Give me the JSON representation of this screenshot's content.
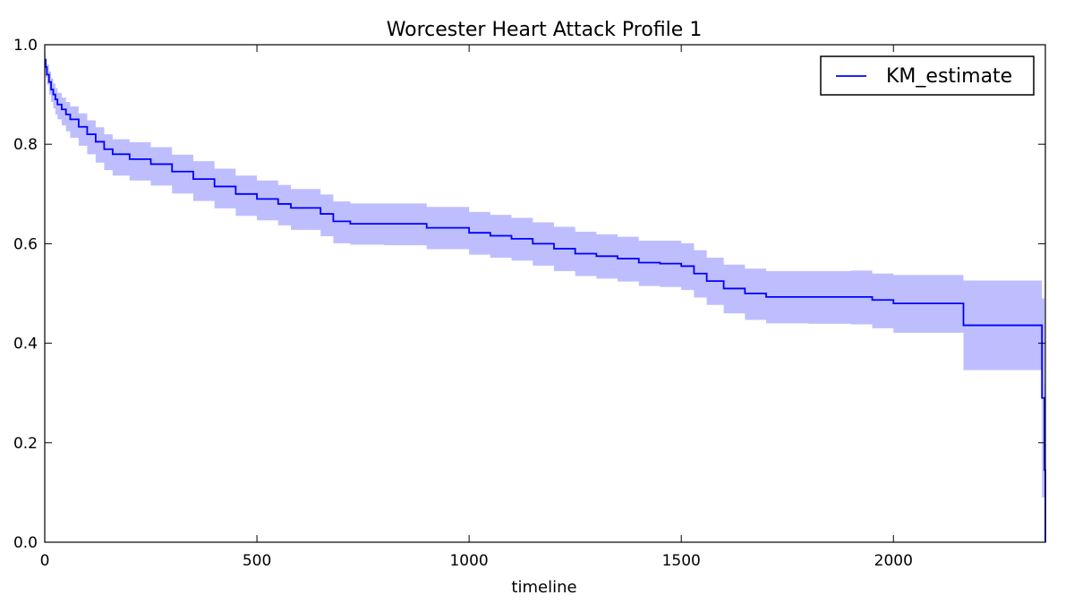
{
  "chart_data": {
    "type": "line",
    "title": "Worcester Heart Attack Profile 1",
    "xlabel": "timeline",
    "ylabel": "",
    "xlim": [
      0,
      2358
    ],
    "ylim": [
      0.0,
      1.0
    ],
    "x_ticks": [
      0,
      500,
      1000,
      1500,
      2000
    ],
    "y_ticks": [
      0.0,
      0.2,
      0.4,
      0.6,
      0.8,
      1.0
    ],
    "x_tick_labels": [
      "0",
      "500",
      "1000",
      "1500",
      "2000"
    ],
    "y_tick_labels": [
      "0.0",
      "0.2",
      "0.4",
      "0.6",
      "0.8",
      "1.0"
    ],
    "grid": false,
    "legend_position": "top-right",
    "colors": {
      "line": "#0000ff",
      "band": "#b3b3ff"
    },
    "series": [
      {
        "name": "KM_estimate",
        "step": "post",
        "x": [
          0,
          2,
          5,
          10,
          15,
          20,
          25,
          30,
          40,
          50,
          60,
          80,
          100,
          120,
          140,
          160,
          200,
          250,
          300,
          350,
          400,
          450,
          500,
          550,
          580,
          650,
          680,
          720,
          800,
          900,
          1000,
          1050,
          1100,
          1150,
          1200,
          1250,
          1300,
          1350,
          1400,
          1450,
          1500,
          1530,
          1560,
          1600,
          1650,
          1700,
          1800,
          1900,
          1950,
          2000,
          2100,
          2165,
          2250,
          2350,
          2356,
          2358
        ],
        "y": [
          0.97,
          0.955,
          0.94,
          0.925,
          0.91,
          0.9,
          0.89,
          0.88,
          0.87,
          0.86,
          0.85,
          0.835,
          0.82,
          0.805,
          0.79,
          0.78,
          0.77,
          0.76,
          0.745,
          0.73,
          0.715,
          0.7,
          0.69,
          0.68,
          0.672,
          0.66,
          0.645,
          0.64,
          0.64,
          0.632,
          0.622,
          0.616,
          0.61,
          0.6,
          0.59,
          0.58,
          0.575,
          0.57,
          0.562,
          0.56,
          0.555,
          0.54,
          0.525,
          0.51,
          0.5,
          0.493,
          0.493,
          0.493,
          0.487,
          0.48,
          0.48,
          0.436,
          0.436,
          0.29,
          0.145,
          0.0
        ],
        "ci_lower": [
          0.95,
          0.935,
          0.92,
          0.9,
          0.885,
          0.872,
          0.86,
          0.85,
          0.838,
          0.826,
          0.813,
          0.797,
          0.78,
          0.763,
          0.748,
          0.737,
          0.727,
          0.717,
          0.701,
          0.686,
          0.671,
          0.656,
          0.647,
          0.637,
          0.628,
          0.615,
          0.601,
          0.598,
          0.597,
          0.589,
          0.578,
          0.572,
          0.566,
          0.556,
          0.545,
          0.535,
          0.53,
          0.524,
          0.515,
          0.513,
          0.507,
          0.492,
          0.477,
          0.46,
          0.447,
          0.44,
          0.439,
          0.438,
          0.43,
          0.421,
          0.421,
          0.346,
          0.346,
          0.09,
          0.01,
          0.0
        ],
        "ci_upper": [
          0.985,
          0.972,
          0.96,
          0.946,
          0.932,
          0.922,
          0.913,
          0.903,
          0.894,
          0.885,
          0.876,
          0.862,
          0.848,
          0.834,
          0.82,
          0.81,
          0.804,
          0.794,
          0.779,
          0.766,
          0.751,
          0.737,
          0.727,
          0.718,
          0.71,
          0.699,
          0.685,
          0.681,
          0.681,
          0.674,
          0.664,
          0.658,
          0.652,
          0.643,
          0.634,
          0.624,
          0.619,
          0.614,
          0.606,
          0.606,
          0.601,
          0.587,
          0.572,
          0.558,
          0.55,
          0.545,
          0.545,
          0.546,
          0.54,
          0.537,
          0.537,
          0.526,
          0.526,
          0.49,
          0.32,
          0.0
        ]
      }
    ]
  }
}
